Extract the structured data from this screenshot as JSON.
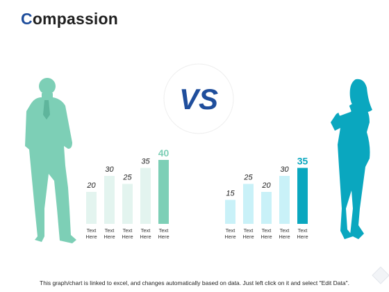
{
  "title": {
    "first_letter": "C",
    "rest": "ompassion"
  },
  "vs_label": "VS",
  "footer_note": "This graph/chart is linked to excel, and changes automatically based on data. Just left click on it and select \"Edit Data\".",
  "colors": {
    "left_accent": "#7dcfb6",
    "left_light": "#e3f4ef",
    "right_accent": "#0aa7bf",
    "right_light": "#c9f1f8",
    "title_accent": "#1f4e9c",
    "vs": "#1f4e9c"
  },
  "chart_data": [
    {
      "type": "bar",
      "categories": [
        "Text Here",
        "Text Here",
        "Text Here",
        "Text Here",
        "Text Here"
      ],
      "values": [
        20,
        30,
        25,
        35,
        40
      ],
      "highlight_index": 4,
      "title": "",
      "xlabel": "",
      "ylabel": ""
    },
    {
      "type": "bar",
      "categories": [
        "Text Here",
        "Text Here",
        "Text Here",
        "Text Here",
        "Text Here"
      ],
      "values": [
        15,
        25,
        20,
        30,
        35
      ],
      "highlight_index": 4,
      "title": "",
      "xlabel": "",
      "ylabel": ""
    }
  ]
}
